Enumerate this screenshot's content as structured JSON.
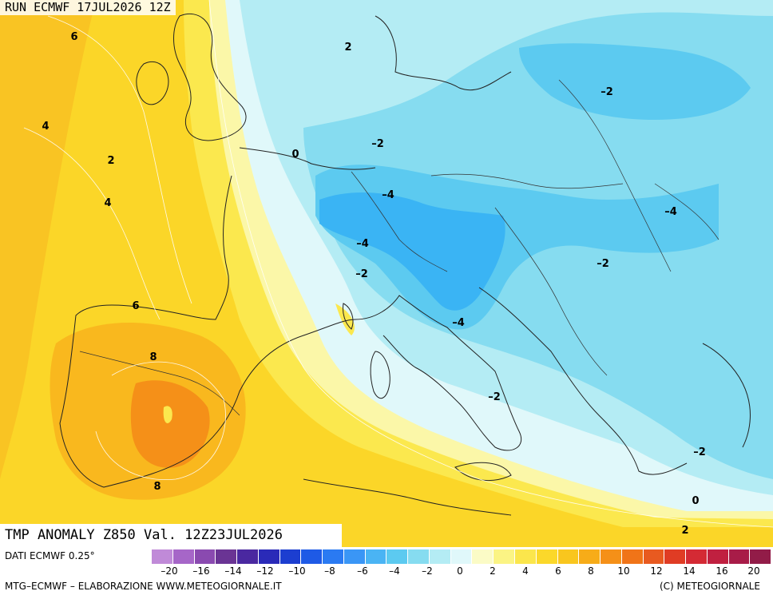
{
  "header": {
    "run_label": "RUN ECMWF 17JUL2026 12Z"
  },
  "map_title": "TMP ANOMALY Z850 Val. 12Z23JUL2026",
  "footer": {
    "data_source": "DATI ECMWF 0.25°",
    "credit": "MTG–ECMWF – ELABORAZIONE WWW.METEOGIORNALE.IT",
    "copyright": "(C) METEOGIORNALE"
  },
  "colorbar": {
    "colors": [
      "#c08ad8",
      "#a666c8",
      "#8a4ab0",
      "#6a3494",
      "#4a28a0",
      "#2a2ab8",
      "#1c3ed0",
      "#1e5ae6",
      "#2a7af2",
      "#3a96f6",
      "#4ab4f4",
      "#5ccaf0",
      "#86dcf0",
      "#b4ecf4",
      "#e0f8fa",
      "#fbfbc6",
      "#fbf484",
      "#fbe64c",
      "#fbd82a",
      "#f9c61e",
      "#f7ac18",
      "#f59018",
      "#f07418",
      "#e85a20",
      "#e03c24",
      "#d42a34",
      "#c02040",
      "#a81c48",
      "#921c48"
    ],
    "tick_labels": [
      "–20",
      "–16",
      "–14",
      "–12",
      "–10",
      "–8",
      "–6",
      "–4",
      "–2",
      "0",
      "2",
      "4",
      "6",
      "8",
      "10",
      "12",
      "14",
      "16",
      "20"
    ]
  },
  "contour_labels": [
    "6",
    "4",
    "2",
    "4",
    "6",
    "8",
    "8",
    "2",
    "0",
    "–2",
    "–2",
    "–4",
    "–4",
    "–2",
    "–4",
    "–4",
    "–2",
    "–2",
    "–4",
    "–2",
    "0",
    "2"
  ],
  "region_colors": {
    "anom_pos_8": "#f59018",
    "anom_pos_6": "#f9b81e",
    "anom_pos_4": "#fbd628",
    "anom_pos_2": "#fbe84e",
    "anom_pos_1": "#fbf7a8",
    "anom_0": "#e0f8fa",
    "anom_neg_1": "#b4ecf4",
    "anom_neg_2": "#86dcf0",
    "anom_neg_3": "#5ccaf0",
    "anom_neg_4": "#3ab4f4"
  }
}
